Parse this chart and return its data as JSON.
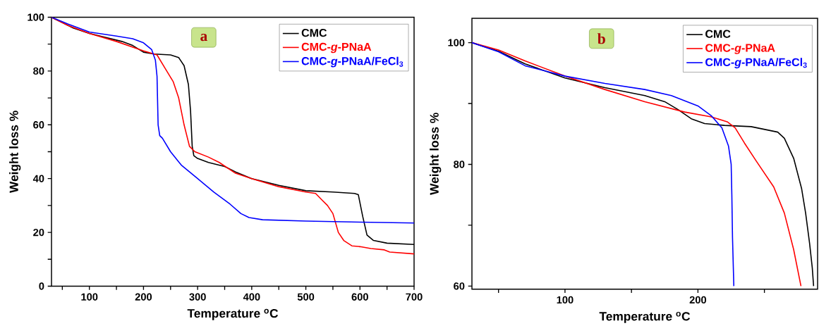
{
  "chart_data": [
    {
      "type": "line",
      "xlabel": "Temperature $^{o}$C",
      "ylabel": "Weight loss %",
      "xlim": [
        30,
        700
      ],
      "ylim": [
        0,
        100
      ],
      "xticks": [
        {
          "value": 50,
          "label": null
        },
        100,
        {
          "value": 150,
          "label": null
        },
        200,
        {
          "value": 250,
          "label": null
        },
        300,
        {
          "value": 350,
          "label": null
        },
        400,
        {
          "value": 450,
          "label": null
        },
        500,
        {
          "value": 550,
          "label": null
        },
        600,
        {
          "value": 650,
          "label": null
        },
        700
      ],
      "yticks": [
        0,
        {
          "value": 10,
          "label": null
        },
        20,
        {
          "value": 30,
          "label": null
        },
        40,
        {
          "value": 50,
          "label": null
        },
        60,
        {
          "value": 70,
          "label": null
        },
        80,
        {
          "value": 90,
          "label": null
        },
        100
      ],
      "legend": "top right",
      "annotations": [
        "a"
      ],
      "series": [
        {
          "name": "CMC",
          "color": "#000000",
          "x": [
            30,
            50,
            70,
            100,
            130,
            160,
            180,
            200,
            220,
            250,
            265,
            275,
            283,
            287,
            290,
            293,
            300,
            320,
            350,
            370,
            400,
            450,
            500,
            550,
            590,
            597,
            605,
            613,
            625,
            650,
            700
          ],
          "values": [
            100,
            98,
            96,
            94,
            92.5,
            91,
            89.5,
            87,
            86.3,
            86,
            85,
            82,
            75,
            65,
            52,
            48.5,
            47.5,
            46,
            44.5,
            42.5,
            40,
            37.5,
            35.5,
            35,
            34.5,
            34,
            26,
            19,
            17,
            16,
            15.5
          ]
        },
        {
          "name": "CMC-*g*-PNaA",
          "color": "#ff0000",
          "x": [
            30,
            60,
            100,
            150,
            200,
            225,
            240,
            255,
            265,
            275,
            285,
            295,
            320,
            340,
            370,
            400,
            450,
            500,
            518,
            530,
            540,
            550,
            560,
            570,
            585,
            600,
            620,
            645,
            655,
            700
          ],
          "values": [
            100,
            97,
            94,
            91,
            87.5,
            86,
            81,
            76,
            70,
            60,
            52,
            50,
            48,
            46,
            42,
            40,
            37,
            35,
            34.5,
            32,
            30,
            27,
            20,
            17,
            15,
            14.7,
            14,
            13.5,
            12.7,
            12
          ]
        },
        {
          "name": "CMC-*g*-PNaA/FeCl$_{3}$",
          "color": "#0000ff",
          "x": [
            30,
            60,
            100,
            150,
            180,
            200,
            215,
            222,
            225,
            227,
            230,
            235,
            250,
            270,
            300,
            330,
            360,
            380,
            395,
            420,
            500,
            600,
            700
          ],
          "values": [
            100,
            97.5,
            94.5,
            93,
            92,
            90.5,
            88,
            84,
            78,
            60,
            56,
            55,
            50,
            45,
            40,
            35,
            30.5,
            27,
            25.5,
            24.7,
            24.2,
            23.8,
            23.5
          ]
        }
      ]
    },
    {
      "type": "line",
      "xlabel": "Temperature $^{o}$C",
      "ylabel": "Weight loss %",
      "xlim": [
        30,
        290
      ],
      "ylim": [
        59.5,
        104
      ],
      "xticks": [
        {
          "value": 50,
          "label": null
        },
        100,
        {
          "value": 150,
          "label": null
        },
        200,
        {
          "value": 250,
          "label": null
        }
      ],
      "yticks": [
        60,
        {
          "value": 70,
          "label": null
        },
        80,
        {
          "value": 90,
          "label": null
        },
        100
      ],
      "legend": "top right",
      "annotations": [
        "b"
      ],
      "series": [
        {
          "name": "CMC",
          "color": "#000000",
          "x": [
            30,
            50,
            70,
            100,
            130,
            160,
            175,
            185,
            195,
            205,
            220,
            240,
            260,
            265,
            272,
            278,
            281,
            284,
            286,
            287
          ],
          "values": [
            100,
            98.6,
            96.5,
            94.2,
            92.6,
            91.3,
            90.3,
            89,
            87.5,
            86.7,
            86.4,
            86.2,
            85.3,
            84.3,
            81,
            76,
            72,
            67,
            63,
            60
          ]
        },
        {
          "name": "CMC-*g*-PNaA",
          "color": "#ff0000",
          "x": [
            30,
            50,
            70,
            100,
            130,
            160,
            190,
            210,
            222,
            228,
            235,
            244,
            257,
            265,
            272,
            277.5
          ],
          "values": [
            100,
            98.8,
            97,
            94.5,
            92.3,
            90.3,
            88.6,
            87.8,
            87,
            86,
            83.5,
            80.5,
            76.3,
            72,
            66,
            60
          ]
        },
        {
          "name": "CMC-*g*-PNaA/FeCl$_{3}$",
          "color": "#0000ff",
          "x": [
            30,
            50,
            70,
            100,
            130,
            160,
            180,
            200,
            210,
            218,
            223,
            225,
            225.5,
            226,
            227
          ],
          "values": [
            100,
            98.5,
            96.2,
            94.5,
            93.3,
            92.3,
            91.3,
            89.6,
            88,
            86,
            83,
            80,
            75,
            68,
            60
          ]
        }
      ]
    }
  ]
}
